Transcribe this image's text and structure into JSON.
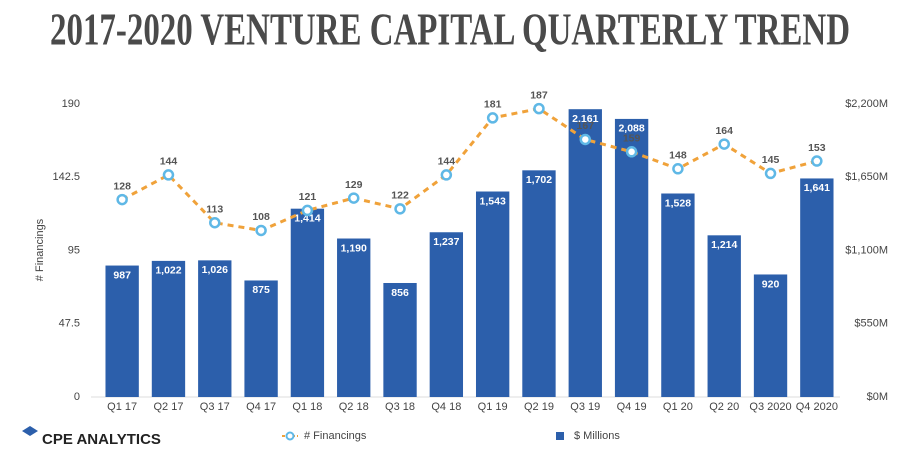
{
  "chart_data": {
    "type": "bar",
    "title": "2017-2020 VENTURE CAPITAL QUARTERLY TREND",
    "y_label": "# Financings",
    "logo": "CPE ANALYTICS",
    "categories": [
      "Q1 17",
      "Q2 17",
      "Q3 17",
      "Q4 17",
      "Q1 18",
      "Q2 18",
      "Q3 18",
      "Q4 18",
      "Q1 19",
      "Q2 19",
      "Q3 19",
      "Q4 19",
      "Q1 20",
      "Q2 20",
      "Q3 2020",
      "Q4 2020"
    ],
    "ylim": [
      0,
      190
    ],
    "yticks": [
      0,
      47.5,
      95,
      142.5,
      190
    ],
    "y2lim": [
      0,
      2200
    ],
    "y2ticks": [
      {
        "value": 0,
        "label": "$0M"
      },
      {
        "value": 550,
        "label": "$550M"
      },
      {
        "value": 1100,
        "label": "$1,100M"
      },
      {
        "value": 1650,
        "label": "$1,650M"
      },
      {
        "value": 2200,
        "label": "$2,200M"
      }
    ],
    "grid": false,
    "legend": "bottom",
    "series": [
      {
        "name": "$ Millions",
        "type": "bar",
        "axis": "y2",
        "color": "#2c5fab",
        "values": [
          987,
          1022,
          1026,
          875,
          1414,
          1190,
          856,
          1237,
          1543,
          1702,
          2161,
          2088,
          1528,
          1214,
          920,
          1641
        ],
        "value_labels": [
          "987",
          "1,022",
          "1,026",
          "875",
          "1,414",
          "1,190",
          "856",
          "1,237",
          "1,543",
          "1,702",
          "2,161",
          "2,088",
          "1,528",
          "1,214",
          "920",
          "1,641"
        ]
      },
      {
        "name": "# Financings",
        "type": "line",
        "color": "#f0a23a",
        "marker_color": "#5fb8e6",
        "values": [
          128,
          144,
          113,
          108,
          121,
          129,
          122,
          144,
          181,
          187,
          167,
          159,
          148,
          164,
          145,
          153
        ]
      }
    ]
  }
}
